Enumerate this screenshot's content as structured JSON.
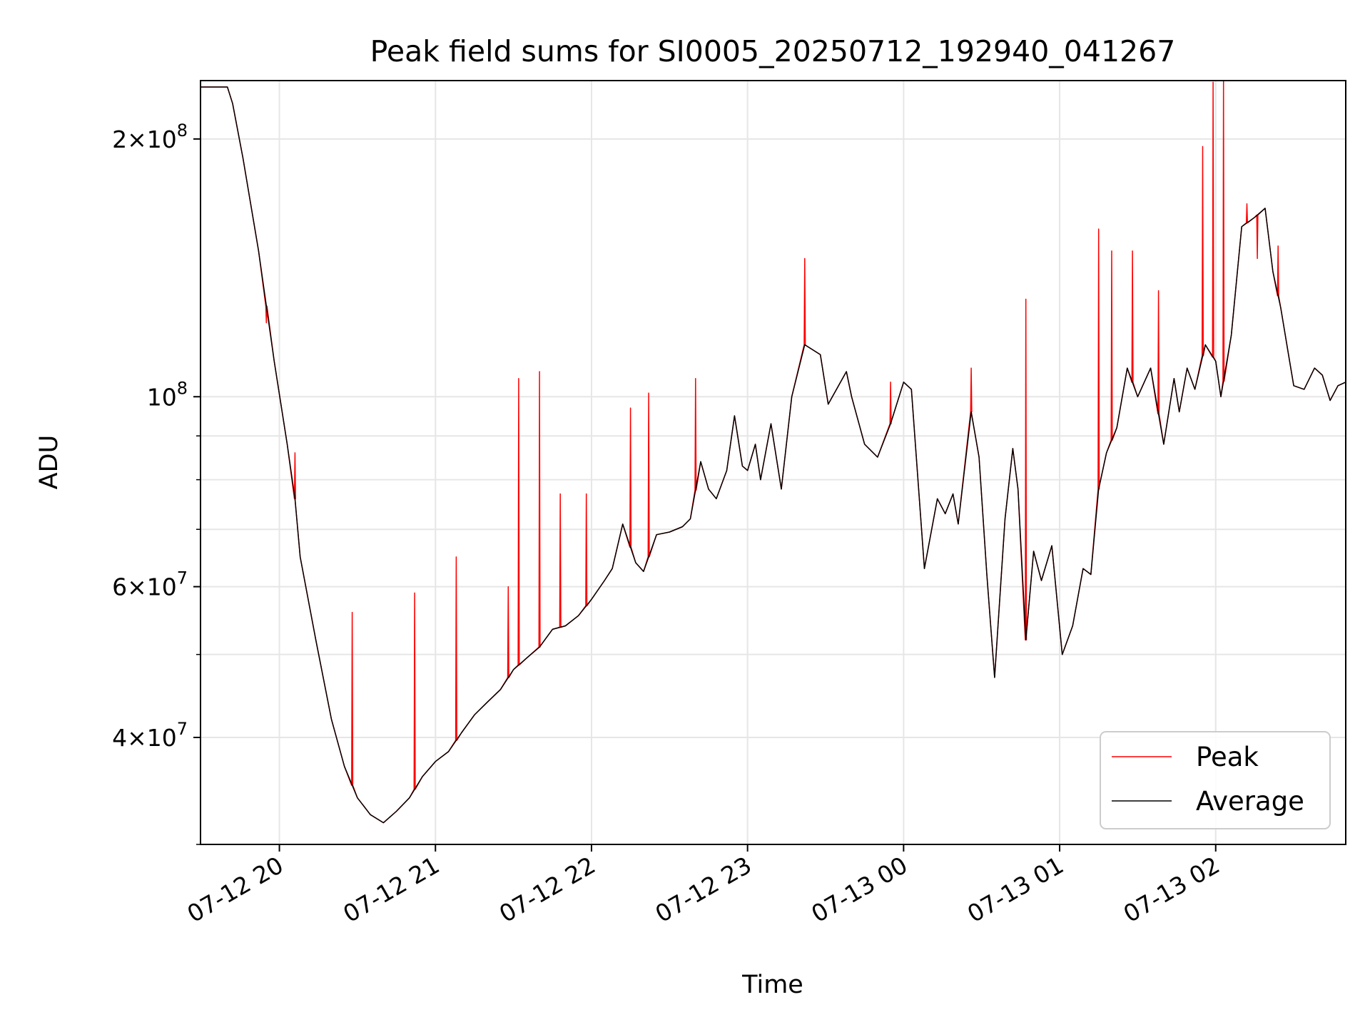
{
  "chart_data": {
    "type": "line",
    "title": "Peak field sums for SI0005_20250712_192940_041267",
    "xlabel": "Time",
    "ylabel": "ADU",
    "yscale": "log",
    "xlim": [
      "2025-07-12 19:29:40",
      "2025-07-13 02:50:00"
    ],
    "ylim": [
      30000000,
      234000000
    ],
    "x_ticks": [
      {
        "value": "2025-07-12 20:00",
        "label": "07-12 20"
      },
      {
        "value": "2025-07-12 21:00",
        "label": "07-12 21"
      },
      {
        "value": "2025-07-12 22:00",
        "label": "07-12 22"
      },
      {
        "value": "2025-07-12 23:00",
        "label": "07-12 23"
      },
      {
        "value": "2025-07-13 00:00",
        "label": "07-13 00"
      },
      {
        "value": "2025-07-13 01:00",
        "label": "07-13 01"
      },
      {
        "value": "2025-07-13 02:00",
        "label": "07-13 02"
      }
    ],
    "y_ticks": [
      {
        "value": 40000000,
        "mantissa": "4",
        "base": "10",
        "exp": "7"
      },
      {
        "value": 60000000,
        "mantissa": "6",
        "base": "10",
        "exp": "7"
      },
      {
        "value": 100000000,
        "mantissa": "",
        "base": "10",
        "exp": "8"
      },
      {
        "value": 200000000,
        "mantissa": "2",
        "base": "10",
        "exp": "8"
      }
    ],
    "y_minor_ticks": [
      30000000,
      50000000,
      70000000,
      80000000,
      90000000
    ],
    "grid": true,
    "legend": {
      "position": "lower right"
    },
    "series": [
      {
        "name": "Peak",
        "color": "#ff0000"
      },
      {
        "name": "Average",
        "color": "#000000"
      }
    ],
    "average_key_points": [
      [
        "2025-07-12 19:29",
        230000000
      ],
      [
        "2025-07-12 19:40",
        230000000
      ],
      [
        "2025-07-12 19:42",
        220000000
      ],
      [
        "2025-07-12 19:46",
        190000000
      ],
      [
        "2025-07-12 19:52",
        148000000
      ],
      [
        "2025-07-12 19:58",
        110000000
      ],
      [
        "2025-07-12 20:03",
        88000000
      ],
      [
        "2025-07-12 20:06",
        76000000
      ],
      [
        "2025-07-12 20:08",
        65000000
      ],
      [
        "2025-07-12 20:14",
        52000000
      ],
      [
        "2025-07-12 20:20",
        42000000
      ],
      [
        "2025-07-12 20:25",
        37000000
      ],
      [
        "2025-07-12 20:30",
        34000000
      ],
      [
        "2025-07-12 20:35",
        32500000
      ],
      [
        "2025-07-12 20:40",
        31800000
      ],
      [
        "2025-07-12 20:45",
        32800000
      ],
      [
        "2025-07-12 20:50",
        34000000
      ],
      [
        "2025-07-12 20:55",
        36000000
      ],
      [
        "2025-07-12 21:00",
        37500000
      ],
      [
        "2025-07-12 21:05",
        38500000
      ],
      [
        "2025-07-12 21:10",
        40500000
      ],
      [
        "2025-07-12 21:15",
        42500000
      ],
      [
        "2025-07-12 21:20",
        44000000
      ],
      [
        "2025-07-12 21:25",
        45500000
      ],
      [
        "2025-07-12 21:30",
        48000000
      ],
      [
        "2025-07-12 21:35",
        49500000
      ],
      [
        "2025-07-12 21:40",
        51000000
      ],
      [
        "2025-07-12 21:45",
        53500000
      ],
      [
        "2025-07-12 21:50",
        54000000
      ],
      [
        "2025-07-12 21:55",
        55500000
      ],
      [
        "2025-07-12 22:00",
        58000000
      ],
      [
        "2025-07-12 22:05",
        61000000
      ],
      [
        "2025-07-12 22:08",
        63000000
      ],
      [
        "2025-07-12 22:12",
        71000000
      ],
      [
        "2025-07-12 22:17",
        64000000
      ],
      [
        "2025-07-12 22:20",
        62500000
      ],
      [
        "2025-07-12 22:25",
        69000000
      ],
      [
        "2025-07-12 22:30",
        69500000
      ],
      [
        "2025-07-12 22:35",
        70500000
      ],
      [
        "2025-07-12 22:38",
        72000000
      ],
      [
        "2025-07-12 22:42",
        84000000
      ],
      [
        "2025-07-12 22:45",
        78000000
      ],
      [
        "2025-07-12 22:48",
        76000000
      ],
      [
        "2025-07-12 22:52",
        82000000
      ],
      [
        "2025-07-12 22:55",
        95000000
      ],
      [
        "2025-07-12 22:58",
        83000000
      ],
      [
        "2025-07-12 23:00",
        82000000
      ],
      [
        "2025-07-12 23:03",
        88000000
      ],
      [
        "2025-07-12 23:05",
        80000000
      ],
      [
        "2025-07-12 23:09",
        93000000
      ],
      [
        "2025-07-12 23:13",
        78000000
      ],
      [
        "2025-07-12 23:17",
        100000000
      ],
      [
        "2025-07-12 23:22",
        115000000
      ],
      [
        "2025-07-12 23:28",
        112000000
      ],
      [
        "2025-07-12 23:31",
        98000000
      ],
      [
        "2025-07-12 23:35",
        103000000
      ],
      [
        "2025-07-12 23:38",
        107000000
      ],
      [
        "2025-07-12 23:40",
        100000000
      ],
      [
        "2025-07-12 23:45",
        88000000
      ],
      [
        "2025-07-12 23:50",
        85000000
      ],
      [
        "2025-07-12 23:55",
        93000000
      ],
      [
        "2025-07-13 00:00",
        104000000
      ],
      [
        "2025-07-13 00:03",
        102000000
      ],
      [
        "2025-07-13 00:08",
        63000000
      ],
      [
        "2025-07-13 00:13",
        76000000
      ],
      [
        "2025-07-13 00:16",
        73000000
      ],
      [
        "2025-07-13 00:19",
        77000000
      ],
      [
        "2025-07-13 00:21",
        71000000
      ],
      [
        "2025-07-13 00:26",
        96000000
      ],
      [
        "2025-07-13 00:29",
        85000000
      ],
      [
        "2025-07-13 00:32",
        62000000
      ],
      [
        "2025-07-13 00:35",
        47000000
      ],
      [
        "2025-07-13 00:39",
        72000000
      ],
      [
        "2025-07-13 00:42",
        87000000
      ],
      [
        "2025-07-13 00:44",
        78000000
      ],
      [
        "2025-07-13 00:47",
        52000000
      ],
      [
        "2025-07-13 00:50",
        66000000
      ],
      [
        "2025-07-13 00:53",
        61000000
      ],
      [
        "2025-07-13 00:57",
        67000000
      ],
      [
        "2025-07-13 01:01",
        50000000
      ],
      [
        "2025-07-13 01:05",
        54000000
      ],
      [
        "2025-07-13 01:09",
        63000000
      ],
      [
        "2025-07-13 01:12",
        62000000
      ],
      [
        "2025-07-13 01:15",
        78000000
      ],
      [
        "2025-07-13 01:18",
        86000000
      ],
      [
        "2025-07-13 01:22",
        92000000
      ],
      [
        "2025-07-13 01:26",
        108000000
      ],
      [
        "2025-07-13 01:30",
        100000000
      ],
      [
        "2025-07-13 01:35",
        108000000
      ],
      [
        "2025-07-13 01:40",
        88000000
      ],
      [
        "2025-07-13 01:44",
        105000000
      ],
      [
        "2025-07-13 01:46",
        96000000
      ],
      [
        "2025-07-13 01:49",
        108000000
      ],
      [
        "2025-07-13 01:52",
        102000000
      ],
      [
        "2025-07-13 01:56",
        115000000
      ],
      [
        "2025-07-13 02:00",
        110000000
      ],
      [
        "2025-07-13 02:02",
        100000000
      ],
      [
        "2025-07-13 02:06",
        118000000
      ],
      [
        "2025-07-13 02:10",
        158000000
      ],
      [
        "2025-07-13 02:15",
        162000000
      ],
      [
        "2025-07-13 02:19",
        166000000
      ],
      [
        "2025-07-13 02:22",
        140000000
      ],
      [
        "2025-07-13 02:25",
        127000000
      ],
      [
        "2025-07-13 02:28",
        112000000
      ],
      [
        "2025-07-13 02:30",
        103000000
      ],
      [
        "2025-07-13 02:34",
        102000000
      ],
      [
        "2025-07-13 02:38",
        108000000
      ],
      [
        "2025-07-13 02:41",
        106000000
      ],
      [
        "2025-07-13 02:44",
        99000000
      ],
      [
        "2025-07-13 02:47",
        103000000
      ],
      [
        "2025-07-13 02:50",
        104000000
      ]
    ],
    "peak_spikes": [
      [
        "2025-07-12 19:55",
        122000000
      ],
      [
        "2025-07-12 20:06",
        86000000
      ],
      [
        "2025-07-12 20:28",
        56000000
      ],
      [
        "2025-07-12 20:52",
        59000000
      ],
      [
        "2025-07-12 21:08",
        65000000
      ],
      [
        "2025-07-12 21:28",
        60000000
      ],
      [
        "2025-07-12 21:32",
        105000000
      ],
      [
        "2025-07-12 21:40",
        107000000
      ],
      [
        "2025-07-12 21:48",
        77000000
      ],
      [
        "2025-07-12 21:58",
        77000000
      ],
      [
        "2025-07-12 22:15",
        97000000
      ],
      [
        "2025-07-12 22:22",
        101000000
      ],
      [
        "2025-07-12 22:40",
        105000000
      ],
      [
        "2025-07-12 23:22",
        145000000
      ],
      [
        "2025-07-12 23:55",
        104000000
      ],
      [
        "2025-07-13 00:26",
        108000000
      ],
      [
        "2025-07-13 00:47",
        130000000
      ],
      [
        "2025-07-13 01:15",
        157000000
      ],
      [
        "2025-07-13 01:20",
        148000000
      ],
      [
        "2025-07-13 01:28",
        148000000
      ],
      [
        "2025-07-13 01:38",
        133000000
      ],
      [
        "2025-07-13 01:55",
        196000000
      ],
      [
        "2025-07-13 01:59",
        233000000
      ],
      [
        "2025-07-13 02:03",
        235000000
      ],
      [
        "2025-07-13 02:12",
        168000000
      ],
      [
        "2025-07-13 02:16",
        145000000
      ],
      [
        "2025-07-13 02:24",
        150000000
      ]
    ]
  }
}
